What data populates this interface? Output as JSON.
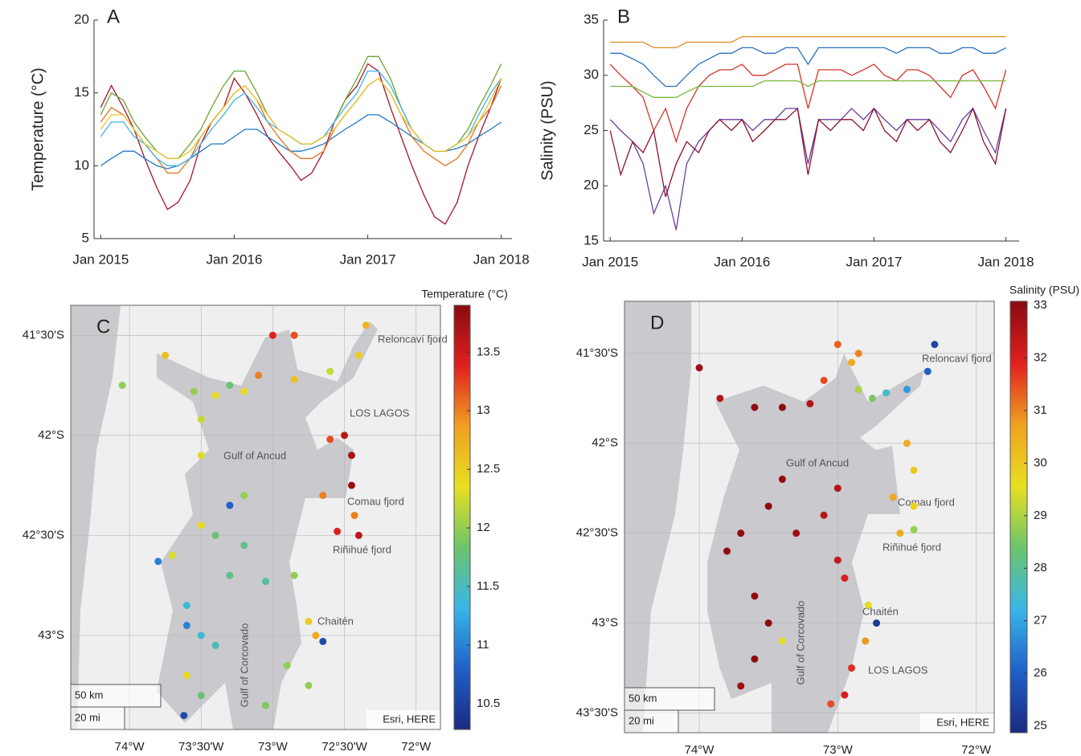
{
  "chart_data": [
    {
      "type": "line",
      "panel": "A",
      "ylabel": "Temperature (°C)",
      "x": [
        2015,
        2015.08,
        2015.17,
        2015.25,
        2015.33,
        2015.42,
        2015.5,
        2015.58,
        2015.67,
        2015.75,
        2015.83,
        2015.92,
        2016,
        2016.08,
        2016.17,
        2016.25,
        2016.33,
        2016.42,
        2016.5,
        2016.58,
        2016.67,
        2016.75,
        2016.83,
        2016.92,
        2017,
        2017.08,
        2017.17,
        2017.25,
        2017.33,
        2017.42,
        2017.5,
        2017.58,
        2017.67,
        2017.75,
        2017.83,
        2017.92,
        2018
      ],
      "xlim": [
        2014.95,
        2018.08
      ],
      "xticks": [
        {
          "value": 2015,
          "label": "Jan 2015"
        },
        {
          "value": 2016,
          "label": "Jan 2016"
        },
        {
          "value": 2017,
          "label": "Jan 2017"
        },
        {
          "value": 2018,
          "label": "Jan 2018"
        }
      ],
      "ylim": [
        5,
        20
      ],
      "yticks": [
        5,
        10,
        15,
        20
      ],
      "series": [
        {
          "color": "#a3152a",
          "values": [
            14,
            15.5,
            14,
            12.5,
            10.5,
            8.5,
            7,
            7.5,
            9,
            11.5,
            13,
            14,
            16,
            15,
            13.5,
            12,
            11,
            10,
            9,
            9.5,
            11,
            13,
            14.5,
            15.5,
            17,
            16.5,
            14,
            12,
            10,
            8,
            6.5,
            6,
            7.5,
            10,
            12,
            14,
            16
          ]
        },
        {
          "color": "#1f77c4",
          "values": [
            10,
            10.5,
            11,
            11,
            10.5,
            10,
            9.8,
            10,
            10.5,
            11,
            11.5,
            11.5,
            12,
            12.5,
            12.5,
            12,
            11.5,
            11,
            11,
            11.2,
            11.5,
            12,
            12.5,
            13,
            13.5,
            13.5,
            13,
            12.5,
            12,
            11.5,
            11,
            11,
            11.2,
            11.5,
            12,
            12.5,
            13
          ]
        },
        {
          "color": "#e8731d",
          "values": [
            13,
            14,
            13.5,
            12.5,
            11.5,
            10.5,
            9.5,
            9.5,
            10.5,
            12,
            13,
            14,
            15,
            15.5,
            14.5,
            13,
            12,
            11,
            10.5,
            10.5,
            11,
            12.5,
            13.5,
            14.5,
            15.5,
            16,
            15,
            13.5,
            12,
            11,
            10.5,
            10,
            10.5,
            11.5,
            13,
            14,
            15.5
          ]
        },
        {
          "color": "#6aa532",
          "values": [
            13.5,
            15,
            14.5,
            13,
            12,
            11,
            10.5,
            10.5,
            11.5,
            12.5,
            14,
            15.5,
            16.5,
            16.5,
            15,
            13.5,
            12.5,
            12,
            11.5,
            11.5,
            12,
            13,
            14.5,
            16,
            17.5,
            17.5,
            16,
            14,
            12.5,
            11.5,
            11,
            11,
            11.5,
            12.5,
            14,
            15.5,
            17
          ]
        },
        {
          "color": "#3fb3e6",
          "values": [
            12,
            13,
            13,
            12,
            11.5,
            10.5,
            10,
            10,
            10.5,
            11.5,
            12.5,
            13.5,
            14.5,
            15,
            14,
            13,
            12.5,
            12,
            11.5,
            11.5,
            12,
            13,
            14,
            15,
            16.5,
            16.5,
            15.5,
            14,
            12.5,
            11.5,
            11,
            11,
            11.5,
            12,
            13.5,
            15,
            16
          ]
        },
        {
          "color": "#e9c32a",
          "values": [
            12.5,
            13.5,
            13.5,
            12.5,
            11.5,
            11,
            10.5,
            10.5,
            11,
            12,
            13,
            14,
            15,
            15.5,
            14.5,
            13.5,
            12.5,
            12,
            11.5,
            11.5,
            12,
            12.5,
            13.5,
            14.5,
            15.5,
            16,
            15,
            13.5,
            12.5,
            11.5,
            11,
            11,
            11.5,
            12,
            13,
            14.5,
            16
          ]
        }
      ]
    },
    {
      "type": "line",
      "panel": "B",
      "ylabel": "Salinity (PSU)",
      "x": [
        2015,
        2015.08,
        2015.17,
        2015.25,
        2015.33,
        2015.42,
        2015.5,
        2015.58,
        2015.67,
        2015.75,
        2015.83,
        2015.92,
        2016,
        2016.08,
        2016.17,
        2016.25,
        2016.33,
        2016.42,
        2016.5,
        2016.58,
        2016.67,
        2016.75,
        2016.83,
        2016.92,
        2017,
        2017.08,
        2017.17,
        2017.25,
        2017.33,
        2017.42,
        2017.5,
        2017.58,
        2017.67,
        2017.75,
        2017.83,
        2017.92,
        2018
      ],
      "xlim": [
        2014.95,
        2018.1
      ],
      "xticks": [
        {
          "value": 2015,
          "label": "Jan 2015"
        },
        {
          "value": 2016,
          "label": "Jan 2016"
        },
        {
          "value": 2017,
          "label": "Jan 2017"
        },
        {
          "value": 2018,
          "label": "Jan 2018"
        }
      ],
      "ylim": [
        15,
        35
      ],
      "yticks": [
        15,
        20,
        25,
        30,
        35
      ],
      "series": [
        {
          "color": "#e08a1e",
          "values": [
            33,
            33,
            33,
            33,
            32.5,
            32.5,
            32.5,
            33,
            33,
            33,
            33,
            33,
            33.5,
            33.5,
            33.5,
            33.5,
            33.5,
            33.5,
            33.5,
            33.5,
            33.5,
            33.5,
            33.5,
            33.5,
            33.5,
            33.5,
            33.5,
            33.5,
            33.5,
            33.5,
            33.5,
            33.5,
            33.5,
            33.5,
            33.5,
            33.5,
            33.5
          ]
        },
        {
          "color": "#2a6fc0",
          "values": [
            32,
            32,
            31.5,
            31,
            30,
            29,
            29,
            30,
            31,
            31.5,
            32,
            32,
            32.5,
            32.5,
            32,
            32,
            32.5,
            32.5,
            31,
            32.5,
            32.5,
            32.5,
            32.5,
            32.5,
            32.5,
            32.5,
            32,
            32.5,
            32.5,
            32.5,
            32,
            32,
            32.5,
            32.5,
            32,
            32,
            32.5
          ]
        },
        {
          "color": "#d4332a",
          "values": [
            31,
            30,
            29,
            28,
            25,
            27,
            24,
            27,
            29,
            30,
            30.5,
            30.5,
            31,
            30,
            30,
            30.5,
            31,
            31,
            27,
            30.5,
            30.5,
            30.5,
            30,
            30.5,
            31,
            30,
            29.5,
            30.5,
            30.5,
            30,
            29,
            28,
            30,
            30.5,
            29,
            27,
            30.5
          ]
        },
        {
          "color": "#78b83a",
          "values": [
            29,
            29,
            29,
            28.5,
            28,
            28,
            28,
            28.5,
            29,
            29,
            29,
            29,
            29,
            29,
            29.5,
            29.5,
            29.5,
            29.5,
            29,
            29.5,
            29.5,
            29.5,
            29.5,
            29.5,
            29.5,
            29.5,
            29.5,
            29.5,
            29.5,
            29.5,
            29.5,
            29.5,
            29.5,
            29.5,
            29.5,
            29.5,
            29.5
          ]
        },
        {
          "color": "#6a3d9a",
          "values": [
            26,
            25,
            24,
            22,
            17.5,
            20,
            16,
            22,
            24,
            25,
            26,
            26,
            26,
            25,
            26,
            26,
            27,
            27,
            22,
            26,
            26,
            26,
            27,
            26,
            27,
            26,
            25,
            26,
            26,
            26,
            25,
            24,
            26,
            27,
            25,
            23,
            27
          ]
        },
        {
          "color": "#8b1030",
          "values": [
            25,
            21,
            24,
            23,
            25,
            19,
            22,
            24,
            23,
            25,
            26,
            25,
            26,
            24,
            25,
            26,
            26,
            27,
            21,
            26,
            25,
            26,
            26,
            25,
            27,
            25,
            24,
            26,
            25,
            26,
            24,
            23,
            25,
            27,
            24,
            22,
            27
          ]
        }
      ]
    },
    {
      "type": "map",
      "panel": "C",
      "colorbar_label": "Temperature (°C)",
      "colormap": [
        "#1a2a80",
        "#2060c8",
        "#38b6e8",
        "#6cc46c",
        "#e8e020",
        "#f0a020",
        "#e02020",
        "#8a0a10"
      ],
      "colorbar_lim": [
        10.28,
        13.9
      ],
      "colorbar_ticks": [
        10.5,
        11,
        11.5,
        12,
        12.5,
        13,
        13.5
      ],
      "xlim": [
        -74.41,
        -71.83
      ],
      "ylim": [
        -43.47,
        -41.35
      ],
      "xticks": [
        {
          "value": -74,
          "label": "74°W"
        },
        {
          "value": -73.5,
          "label": "73°30'W"
        },
        {
          "value": -73,
          "label": "73°W"
        },
        {
          "value": -72.5,
          "label": "72°30'W"
        },
        {
          "value": -72,
          "label": "72°W"
        }
      ],
      "yticks": [
        {
          "value": -41.5,
          "label": "41°30'S"
        },
        {
          "value": -42,
          "label": "42°S"
        },
        {
          "value": -42.5,
          "label": "42°30'S"
        },
        {
          "value": -43,
          "label": "43°S"
        }
      ],
      "lon": [
        -72.35,
        -72.4,
        -72.6,
        -72.85,
        -73.0,
        -73.1,
        -72.85,
        -73.2,
        -73.4,
        -73.3,
        -73.55,
        -73.5,
        -72.6,
        -72.5,
        -72.45,
        -72.45,
        -72.43,
        -72.65,
        -72.55,
        -72.4,
        -73.5,
        -73.2,
        -73.3,
        -73.5,
        -73.7,
        -73.8,
        -73.4,
        -73.2,
        -73.3,
        -73.05,
        -72.85,
        -73.6,
        -73.6,
        -73.5,
        -73.4,
        -73.6,
        -73.5,
        -73.62,
        -72.75,
        -72.7,
        -72.65,
        -72.9,
        -73.05,
        -72.75,
        -74.05,
        -73.75
      ],
      "lat": [
        -41.45,
        -41.6,
        -41.68,
        -41.5,
        -41.5,
        -41.7,
        -41.72,
        -41.78,
        -41.8,
        -41.75,
        -41.78,
        -41.92,
        -42.02,
        -42.0,
        -42.1,
        -42.25,
        -42.4,
        -42.3,
        -42.48,
        -42.5,
        -42.1,
        -42.3,
        -42.35,
        -42.45,
        -42.6,
        -42.63,
        -42.5,
        -42.55,
        -42.7,
        -42.73,
        -42.7,
        -42.85,
        -42.95,
        -43.0,
        -43.05,
        -43.2,
        -43.3,
        -43.4,
        -42.93,
        -43.0,
        -43.03,
        -43.15,
        -43.35,
        -43.25,
        -41.75,
        -41.6
      ],
      "values": [
        12.7,
        12.5,
        12.2,
        13.2,
        13.4,
        13.0,
        12.6,
        12.4,
        12.4,
        11.8,
        12.0,
        12.2,
        13.2,
        13.6,
        13.7,
        13.8,
        13.0,
        13.0,
        13.4,
        13.6,
        12.3,
        12.0,
        10.8,
        12.4,
        12.3,
        11.0,
        11.8,
        11.7,
        11.7,
        11.6,
        12.0,
        11.4,
        11.0,
        11.4,
        11.5,
        12.4,
        11.8,
        10.6,
        12.5,
        12.8,
        10.6,
        12.0,
        11.9,
        12.0,
        12.0,
        12.6
      ],
      "annotations": [
        "Reloncaví fjord",
        "LOS LAGOS",
        "Gulf of Ancud",
        "Comau fjord",
        "Riñihué fjord",
        "Chaitén",
        "Gulf of Corcovado"
      ],
      "scale_bar": [
        "50 km",
        "20 mi"
      ],
      "attribution": "Esri, HERE"
    },
    {
      "type": "map",
      "panel": "D",
      "colorbar_label": "Salinity (PSU)",
      "colormap": [
        "#1a2a80",
        "#2060c8",
        "#38b6e8",
        "#6cc46c",
        "#e8e020",
        "#f0a020",
        "#e02020",
        "#8a0a10"
      ],
      "colorbar_lim": [
        24.87,
        33.08
      ],
      "colorbar_ticks": [
        25,
        26,
        27,
        28,
        29,
        30,
        31,
        32,
        33
      ],
      "xlim": [
        -74.54,
        -71.87
      ],
      "ylim": [
        -43.61,
        -41.21
      ],
      "xticks": [
        {
          "value": -74,
          "label": "74°W"
        },
        {
          "value": -73,
          "label": "73°W"
        },
        {
          "value": -72,
          "label": "72°W"
        }
      ],
      "yticks": [
        {
          "value": -41.5,
          "label": "41°30'S"
        },
        {
          "value": -42,
          "label": "42°S"
        },
        {
          "value": -42.5,
          "label": "42°30'S"
        },
        {
          "value": -43,
          "label": "43°S"
        },
        {
          "value": -43.5,
          "label": "43°30'S"
        }
      ],
      "lon": [
        -72.3,
        -72.35,
        -72.5,
        -72.65,
        -72.75,
        -72.85,
        -72.9,
        -73.0,
        -72.85,
        -73.1,
        -73.2,
        -73.4,
        -73.6,
        -73.85,
        -74.0,
        -72.5,
        -72.45,
        -72.45,
        -72.45,
        -72.6,
        -72.55,
        -73.4,
        -73.5,
        -73.7,
        -73.8,
        -73.3,
        -73.1,
        -73.0,
        -73.0,
        -72.95,
        -73.6,
        -73.5,
        -73.6,
        -73.7,
        -73.4,
        -72.78,
        -72.72,
        -72.8,
        -72.9,
        -72.95,
        -73.05
      ],
      "lat": [
        -41.45,
        -41.6,
        -41.7,
        -41.72,
        -41.75,
        -41.7,
        -41.55,
        -41.45,
        -41.5,
        -41.65,
        -41.78,
        -41.8,
        -41.8,
        -41.75,
        -41.58,
        -42.0,
        -42.15,
        -42.35,
        -42.48,
        -42.3,
        -42.5,
        -42.2,
        -42.35,
        -42.5,
        -42.6,
        -42.5,
        -42.4,
        -42.25,
        -42.65,
        -42.75,
        -42.85,
        -43.0,
        -43.2,
        -43.35,
        -43.1,
        -42.9,
        -43.0,
        -43.1,
        -43.25,
        -43.4,
        -43.45
      ],
      "values": [
        25.5,
        26,
        26.8,
        27.5,
        28.5,
        29,
        30.5,
        31.3,
        31,
        31.5,
        32.5,
        33,
        33,
        32.5,
        32.8,
        30.5,
        30.0,
        29.8,
        28.8,
        30.6,
        30.5,
        33,
        33,
        33,
        33,
        32.8,
        32.5,
        32.5,
        32.3,
        32.0,
        33,
        33,
        33,
        32.8,
        29.5,
        29.5,
        25.2,
        30.8,
        31.8,
        32.0,
        31.5
      ],
      "annotations": [
        "Reloncaví fjord",
        "Gulf of Ancud",
        "Comau fjord",
        "Riñihué fjord",
        "Chaitén",
        "Gulf of Corcovado",
        "LOS LAGOS"
      ],
      "scale_bar": [
        "50 km",
        "20 mi"
      ],
      "attribution": "Esri, HERE"
    }
  ]
}
